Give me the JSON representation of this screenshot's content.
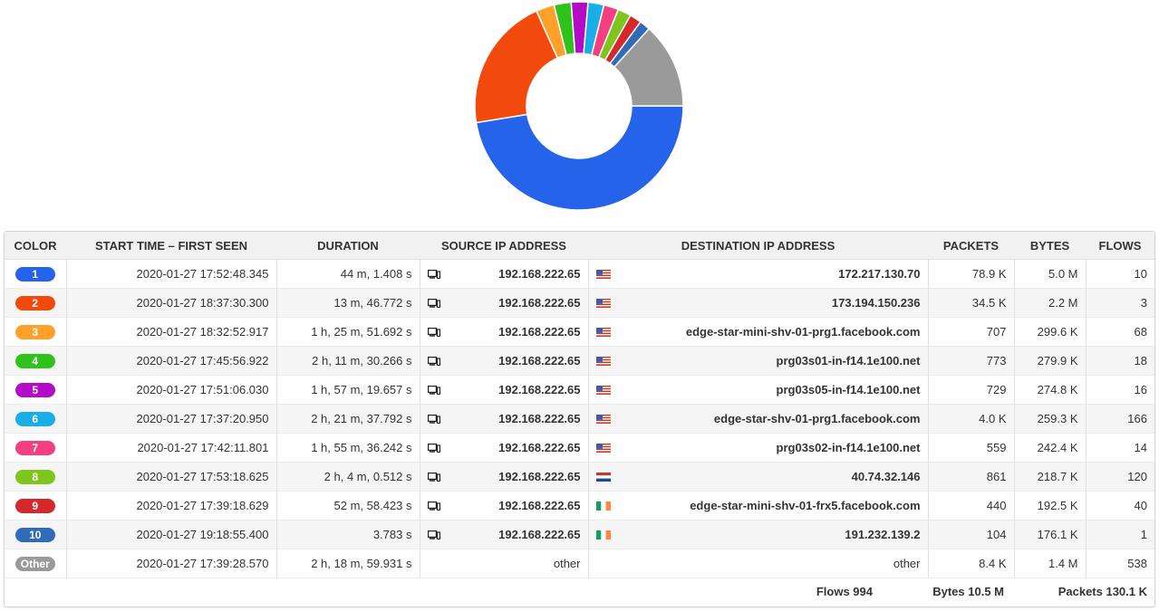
{
  "chart_data": {
    "type": "pie",
    "labels": [
      "1",
      "2",
      "3",
      "4",
      "5",
      "6",
      "7",
      "8",
      "9",
      "10",
      "Other"
    ],
    "values": [
      5.0,
      2.2,
      0.2996,
      0.2799,
      0.2748,
      0.2593,
      0.2424,
      0.2187,
      0.1925,
      0.1761,
      1.4
    ],
    "unit": "MB",
    "colors": [
      "#2563eb",
      "#f24a0c",
      "#fda12a",
      "#2ec21a",
      "#b30bc6",
      "#1aaee8",
      "#f43f81",
      "#7ec61d",
      "#d4282c",
      "#2f6bb8",
      "#9a9a9a"
    ],
    "donut": true
  },
  "table": {
    "headers": [
      "COLOR",
      "START TIME – FIRST SEEN",
      "DURATION",
      "SOURCE IP ADDRESS",
      "DESTINATION IP ADDRESS",
      "PACKETS",
      "BYTES",
      "FLOWS"
    ],
    "rows": [
      {
        "color_label": "1",
        "color": "#2563eb",
        "start": "2020-01-27 17:52:48.345",
        "duration": "44 m, 1.408 s",
        "source": "192.168.222.65",
        "source_icon": "device-icon",
        "flag": "us-flag-icon",
        "destination": "172.217.130.70",
        "packets": "78.9 K",
        "bytes": "5.0 M",
        "flows": "10"
      },
      {
        "color_label": "2",
        "color": "#f24a0c",
        "start": "2020-01-27 18:37:30.300",
        "duration": "13 m, 46.772 s",
        "source": "192.168.222.65",
        "source_icon": "device-icon",
        "flag": "us-flag-icon",
        "destination": "173.194.150.236",
        "packets": "34.5 K",
        "bytes": "2.2 M",
        "flows": "3"
      },
      {
        "color_label": "3",
        "color": "#fda12a",
        "start": "2020-01-27 18:32:52.917",
        "duration": "1 h, 25 m, 51.692 s",
        "source": "192.168.222.65",
        "source_icon": "device-icon",
        "flag": "us-flag-icon",
        "destination": "edge-star-mini-shv-01-prg1.facebook.com",
        "packets": "707",
        "bytes": "299.6 K",
        "flows": "68"
      },
      {
        "color_label": "4",
        "color": "#2ec21a",
        "start": "2020-01-27 17:45:56.922",
        "duration": "2 h, 11 m, 30.266 s",
        "source": "192.168.222.65",
        "source_icon": "device-icon",
        "flag": "us-flag-icon",
        "destination": "prg03s01-in-f14.1e100.net",
        "packets": "773",
        "bytes": "279.9 K",
        "flows": "18"
      },
      {
        "color_label": "5",
        "color": "#b30bc6",
        "start": "2020-01-27 17:51:06.030",
        "duration": "1 h, 57 m, 19.657 s",
        "source": "192.168.222.65",
        "source_icon": "device-icon",
        "flag": "us-flag-icon",
        "destination": "prg03s05-in-f14.1e100.net",
        "packets": "729",
        "bytes": "274.8 K",
        "flows": "16"
      },
      {
        "color_label": "6",
        "color": "#1aaee8",
        "start": "2020-01-27 17:37:20.950",
        "duration": "2 h, 21 m, 37.792 s",
        "source": "192.168.222.65",
        "source_icon": "device-icon",
        "flag": "us-flag-icon",
        "destination": "edge-star-shv-01-prg1.facebook.com",
        "packets": "4.0 K",
        "bytes": "259.3 K",
        "flows": "166"
      },
      {
        "color_label": "7",
        "color": "#f43f81",
        "start": "2020-01-27 17:42:11.801",
        "duration": "1 h, 55 m, 36.242 s",
        "source": "192.168.222.65",
        "source_icon": "device-icon",
        "flag": "us-flag-icon",
        "destination": "prg03s02-in-f14.1e100.net",
        "packets": "559",
        "bytes": "242.4 K",
        "flows": "14"
      },
      {
        "color_label": "8",
        "color": "#7ec61d",
        "start": "2020-01-27 17:53:18.625",
        "duration": "2 h, 4 m, 0.512 s",
        "source": "192.168.222.65",
        "source_icon": "device-icon",
        "flag": "nl-flag-icon",
        "destination": "40.74.32.146",
        "packets": "861",
        "bytes": "218.7 K",
        "flows": "120"
      },
      {
        "color_label": "9",
        "color": "#d4282c",
        "start": "2020-01-27 17:39:18.629",
        "duration": "52 m, 58.423 s",
        "source": "192.168.222.65",
        "source_icon": "device-icon",
        "flag": "ie-flag-icon",
        "destination": "edge-star-mini-shv-01-frx5.facebook.com",
        "packets": "440",
        "bytes": "192.5 K",
        "flows": "40"
      },
      {
        "color_label": "10",
        "color": "#2f6bb8",
        "start": "2020-01-27 19:18:55.400",
        "duration": "3.783 s",
        "source": "192.168.222.65",
        "source_icon": "device-icon",
        "flag": "ie-flag-icon",
        "destination": "191.232.139.2",
        "packets": "104",
        "bytes": "176.1 K",
        "flows": "1"
      },
      {
        "color_label": "Other",
        "color": "#9a9a9a",
        "start": "2020-01-27 17:39:28.570",
        "duration": "2 h, 18 m, 59.931 s",
        "source": "other",
        "source_icon": "",
        "flag": "",
        "destination": "other",
        "packets": "8.4 K",
        "bytes": "1.4 M",
        "flows": "538"
      }
    ]
  },
  "footer": {
    "flows": "Flows 994",
    "bytes": "Bytes 10.5 M",
    "packets": "Packets 130.1 K"
  }
}
